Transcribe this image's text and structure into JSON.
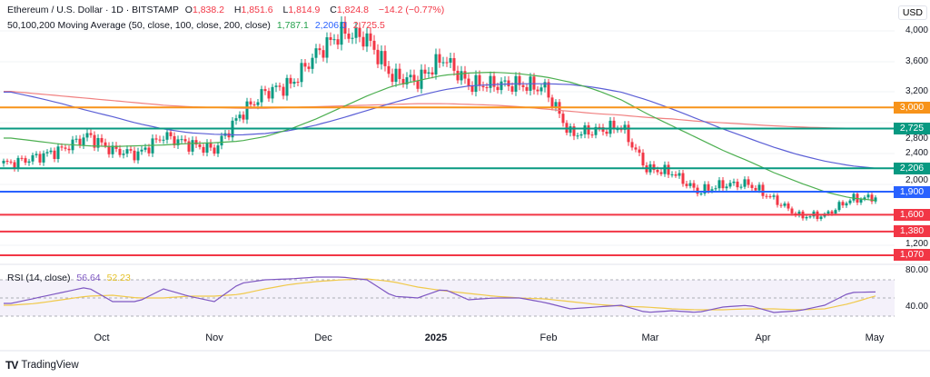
{
  "header": {
    "symbol": "Ethereum / U.S. Dollar · 1D · BITSTAMP",
    "open_label": "O",
    "open": "1,838.2",
    "high_label": "H",
    "high": "1,851.6",
    "low_label": "L",
    "low": "1,814.9",
    "close_label": "C",
    "close": "1,824.8",
    "change": "−14.2 (−0.77%)"
  },
  "ma_legend": {
    "label": "50,100,200 Moving Average (50, close, 100, close, 200, close)",
    "ma50": "1,787.1",
    "ma100": "2,206.0",
    "ma200": "2,725.5"
  },
  "rsi_legend": {
    "label": "RSI (14, close)",
    "rsi": "56.64",
    "rsi_ma": "52.23"
  },
  "currency": "USD",
  "price_ticks": [
    "4,000",
    "3,600",
    "3,200",
    "2,800",
    "2,400",
    "2,000",
    "1,200"
  ],
  "rsi_ticks": [
    "80.00",
    "40.00"
  ],
  "time_labels": [
    "Oct",
    "Nov",
    "Dec",
    "2025",
    "Feb",
    "Mar",
    "Apr",
    "May"
  ],
  "levels": [
    {
      "price": 3000,
      "label": "3,000",
      "color": "#f7931a"
    },
    {
      "price": 2725,
      "label": "2,725",
      "color": "#089981"
    },
    {
      "price": 2206,
      "label": "2,206",
      "color": "#089981"
    },
    {
      "price": 1900,
      "label": "1,900",
      "color": "#2962ff"
    },
    {
      "price": 1600,
      "label": "1,600",
      "color": "#f23645"
    },
    {
      "price": 1380,
      "label": "1,380",
      "color": "#f23645"
    },
    {
      "price": 1070,
      "label": "1,070",
      "color": "#f23645"
    }
  ],
  "brand": "TradingView",
  "colors": {
    "up": "#089981",
    "down": "#f23645",
    "ma50": "#4caf50",
    "ma100": "#5b5fd6",
    "ma200": "#f08080",
    "rsi": "#7e57c2",
    "rsi_ma": "#f0c94a"
  },
  "chart_data": {
    "type": "candlestick",
    "interval": "1D",
    "weekly_closes_from": "2024-09-06",
    "weekly_closes": [
      2270,
      2350,
      2450,
      2630,
      2440,
      2390,
      2630,
      2520,
      2450,
      2900,
      3200,
      3300,
      3700,
      3980,
      3900,
      3400,
      3350,
      3650,
      3300,
      3300,
      3300,
      3250,
      2650,
      2700,
      2750,
      2200,
      2150,
      1900,
      1990,
      2000,
      1800,
      1580,
      1590,
      1800,
      1825
    ],
    "ma50_weekly": [
      2600,
      2560,
      2520,
      2500,
      2490,
      2500,
      2510,
      2530,
      2540,
      2560,
      2620,
      2720,
      2850,
      3000,
      3150,
      3280,
      3350,
      3420,
      3450,
      3460,
      3440,
      3400,
      3330,
      3230,
      3100,
      2920,
      2760,
      2600,
      2440,
      2300,
      2150,
      2020,
      1900,
      1820,
      1787
    ],
    "ma100_weekly": [
      3200,
      3130,
      3050,
      2960,
      2880,
      2790,
      2720,
      2670,
      2650,
      2640,
      2660,
      2700,
      2770,
      2860,
      2960,
      3060,
      3150,
      3230,
      3280,
      3300,
      3310,
      3310,
      3300,
      3260,
      3200,
      3100,
      2980,
      2850,
      2720,
      2600,
      2480,
      2380,
      2300,
      2240,
      2206
    ],
    "ma200_weekly": [
      3210,
      3180,
      3150,
      3120,
      3090,
      3060,
      3030,
      3010,
      3000,
      2990,
      2990,
      3000,
      3010,
      3020,
      3030,
      3040,
      3050,
      3050,
      3040,
      3030,
      3010,
      2980,
      2950,
      2920,
      2900,
      2870,
      2850,
      2820,
      2800,
      2780,
      2760,
      2745,
      2735,
      2728,
      2725
    ],
    "rsi_weekly": [
      44,
      50,
      56,
      62,
      46,
      46,
      60,
      52,
      46,
      66,
      70,
      71,
      73,
      73,
      70,
      52,
      50,
      60,
      48,
      50,
      50,
      45,
      38,
      40,
      42,
      34,
      36,
      34,
      40,
      42,
      34,
      36,
      42,
      56,
      56.64
    ],
    "rsi_ma_weekly": [
      42,
      44,
      48,
      52,
      53,
      50,
      50,
      52,
      52,
      54,
      60,
      65,
      68,
      70,
      71,
      68,
      62,
      58,
      55,
      52,
      50,
      49,
      46,
      43,
      41,
      40,
      38,
      37,
      37,
      38,
      38,
      37,
      38,
      44,
      52.23
    ],
    "price_range": [
      1000,
      4150
    ],
    "rsi_range": [
      20,
      90
    ]
  }
}
